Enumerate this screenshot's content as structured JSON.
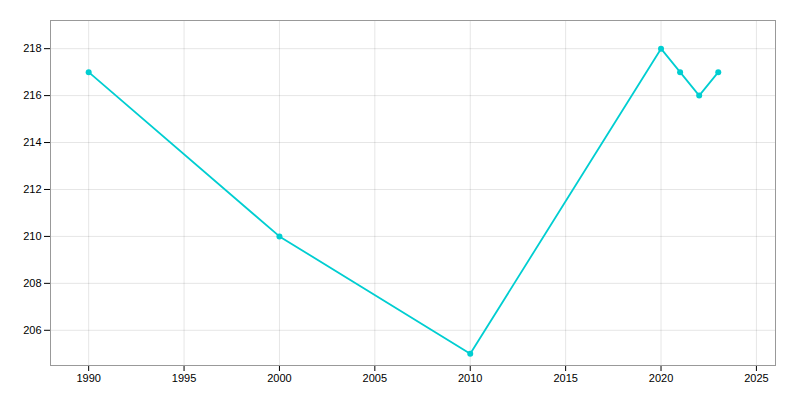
{
  "chart_data": {
    "type": "line",
    "x": [
      1990,
      2000,
      2010,
      2020,
      2021,
      2022,
      2023
    ],
    "values": [
      217,
      210,
      205,
      218,
      217,
      216,
      217
    ],
    "color": "#00CED1",
    "marker": "circle",
    "xlim": [
      1988,
      2026
    ],
    "ylim": [
      204.5,
      219.2
    ],
    "xticks": [
      1990,
      1995,
      2000,
      2005,
      2010,
      2015,
      2020,
      2025
    ],
    "yticks": [
      206,
      208,
      210,
      212,
      214,
      216,
      218
    ],
    "grid": true
  }
}
